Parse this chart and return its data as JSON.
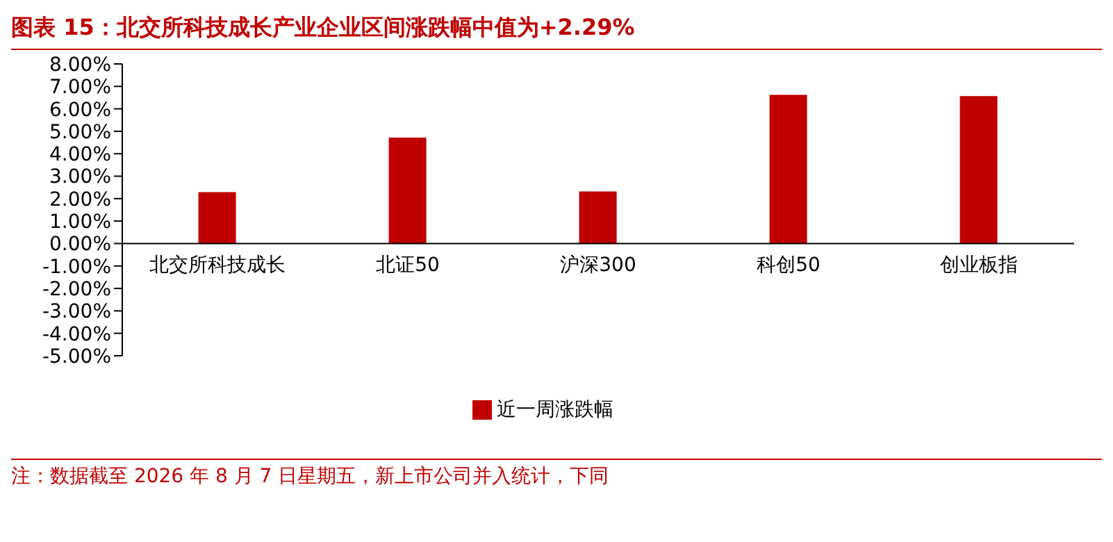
{
  "chart_data": {
    "type": "bar",
    "title": "图表 15：北交所科技成长产业企业区间涨跌幅中值为+2.29%",
    "categories": [
      "北交所科技成长",
      "北证50",
      "沪深300",
      "科创50",
      "创业板指"
    ],
    "series": [
      {
        "name": "近一周涨跌幅",
        "color": "#c00000",
        "values": [
          2.29,
          4.72,
          2.32,
          6.62,
          6.57
        ]
      }
    ],
    "ylim": [
      -5,
      8
    ],
    "yticks": [
      {
        "value": -5,
        "label": "-5.00%"
      },
      {
        "value": -4,
        "label": "-4.00%"
      },
      {
        "value": -3,
        "label": "-3.00%"
      },
      {
        "value": -2,
        "label": "-2.00%"
      },
      {
        "value": -1,
        "label": "-1.00%"
      },
      {
        "value": 0,
        "label": "0.00%"
      },
      {
        "value": 1,
        "label": "1.00%"
      },
      {
        "value": 2,
        "label": "2.00%"
      },
      {
        "value": 3,
        "label": "3.00%"
      },
      {
        "value": 4,
        "label": "4.00%"
      },
      {
        "value": 5,
        "label": "5.00%"
      },
      {
        "value": 6,
        "label": "6.00%"
      },
      {
        "value": 7,
        "label": "7.00%"
      },
      {
        "value": 8,
        "label": "8.00%"
      }
    ],
    "legend": "bottom",
    "grid": false,
    "annotations": [
      "注：数据截至 2026 年 8 月 7 日星期五，新上市公司并入统计，下同"
    ]
  }
}
